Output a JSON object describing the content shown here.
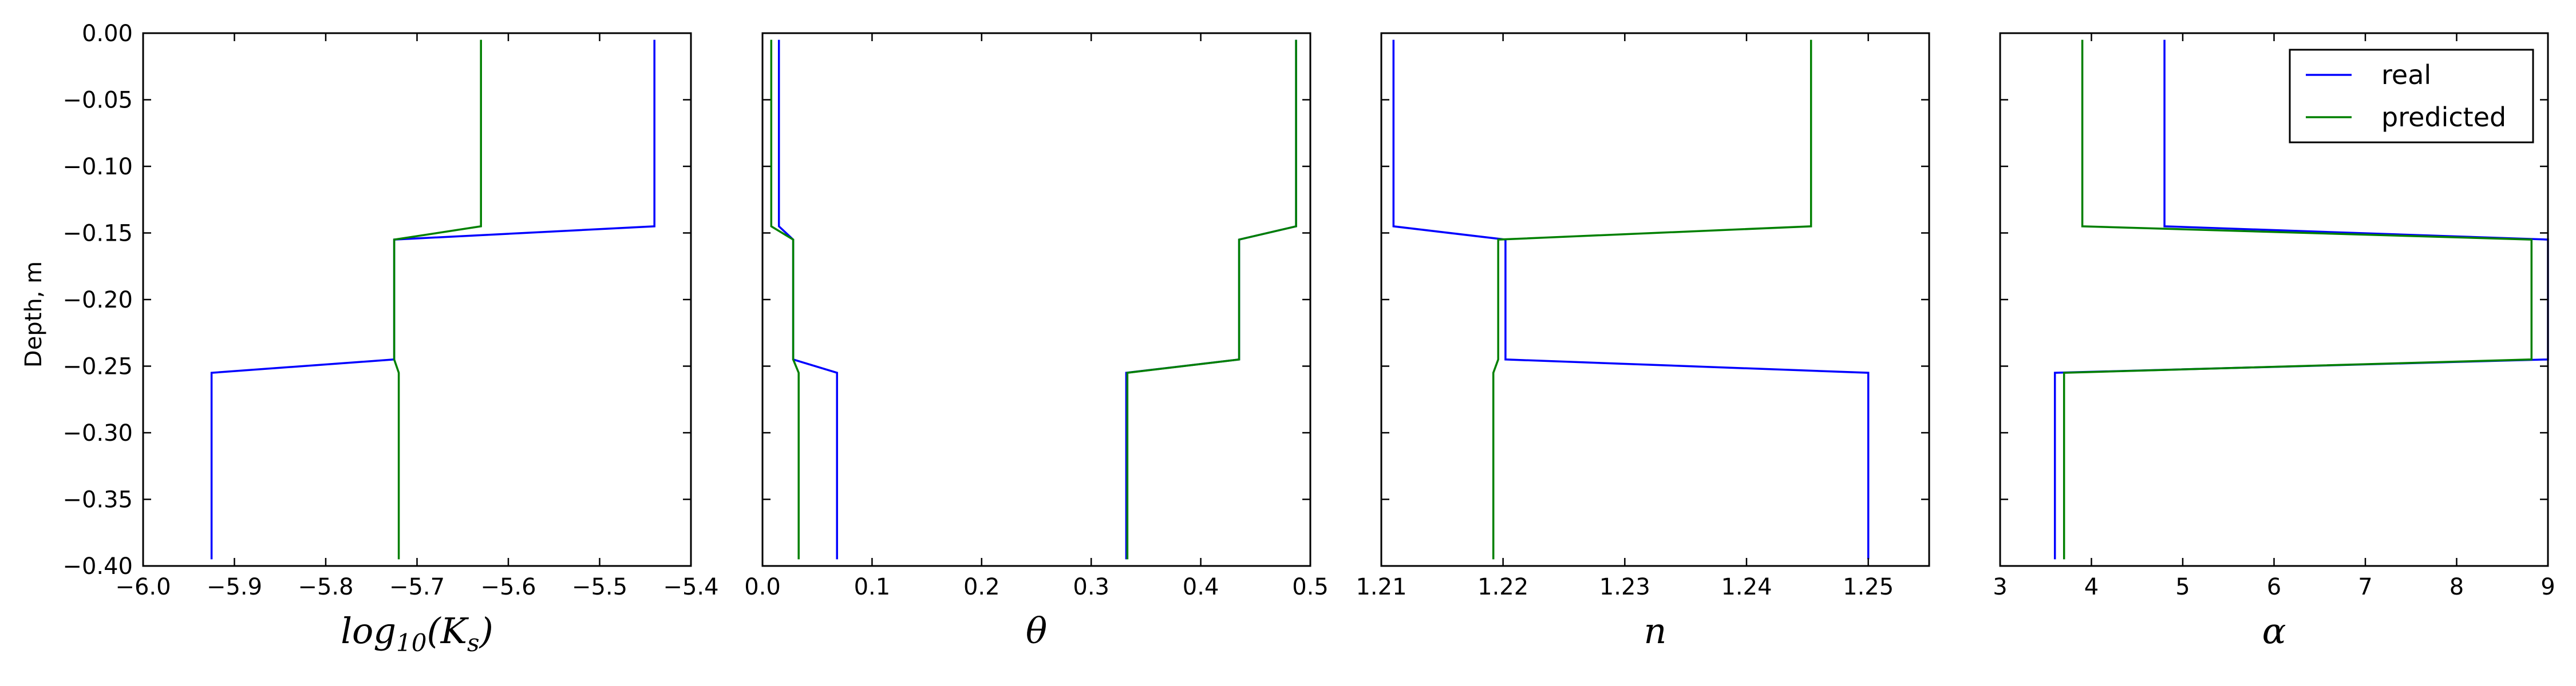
{
  "colors": {
    "real": "#0000ff",
    "predicted": "#008000",
    "frame": "#000000"
  },
  "ylabel": "Depth, m",
  "legend": {
    "placement": "top-right",
    "entries": [
      "real",
      "predicted"
    ]
  },
  "y_ticks": [
    "0.00",
    "−0.05",
    "−0.10",
    "−0.15",
    "−0.20",
    "−0.25",
    "−0.30",
    "−0.35",
    "−0.40"
  ],
  "chart_data": [
    {
      "type": "line",
      "xlabel": "log10(Ks)",
      "xlim": [
        -6.0,
        -5.4
      ],
      "ylim": [
        -0.4,
        0.0
      ],
      "x_ticks": [
        -6.0,
        -5.9,
        -5.8,
        -5.7,
        -5.6,
        -5.5,
        -5.4
      ],
      "x_tick_labels": [
        "−6.0",
        "−5.9",
        "−5.8",
        "−5.7",
        "−5.6",
        "−5.5",
        "−5.4"
      ],
      "series": [
        {
          "name": "real",
          "x": [
            -5.44,
            -5.44,
            -5.725,
            -5.725,
            -5.925,
            -5.925
          ],
          "y": [
            -0.005,
            -0.145,
            -0.155,
            -0.245,
            -0.255,
            -0.395
          ]
        },
        {
          "name": "predicted",
          "x": [
            -5.63,
            -5.63,
            -5.725,
            -5.725,
            -5.72,
            -5.72
          ],
          "y": [
            -0.005,
            -0.145,
            -0.155,
            -0.245,
            -0.255,
            -0.395
          ]
        }
      ]
    },
    {
      "type": "line",
      "xlabel": "θ",
      "xlim": [
        0.0,
        0.5
      ],
      "ylim": [
        -0.4,
        0.0
      ],
      "x_ticks": [
        0.0,
        0.1,
        0.2,
        0.3,
        0.4,
        0.5
      ],
      "x_tick_labels": [
        "0.0",
        "0.1",
        "0.2",
        "0.3",
        "0.4",
        "0.5"
      ],
      "series": [
        {
          "name": "real",
          "x": [
            0.015,
            0.015,
            0.028,
            0.028,
            0.068,
            0.068
          ],
          "y": [
            -0.005,
            -0.145,
            -0.155,
            -0.245,
            -0.255,
            -0.395
          ]
        },
        {
          "name": "predicted",
          "x": [
            0.008,
            0.008,
            0.028,
            0.028,
            0.033,
            0.033
          ],
          "y": [
            -0.005,
            -0.145,
            -0.155,
            -0.245,
            -0.255,
            -0.395
          ]
        },
        {
          "name": "real",
          "x": [
            0.487,
            0.487,
            0.435,
            0.435,
            0.332,
            0.332
          ],
          "y": [
            -0.005,
            -0.145,
            -0.155,
            -0.245,
            -0.255,
            -0.395
          ]
        },
        {
          "name": "predicted",
          "x": [
            0.487,
            0.487,
            0.435,
            0.435,
            0.333,
            0.333
          ],
          "y": [
            -0.005,
            -0.145,
            -0.155,
            -0.245,
            -0.255,
            -0.395
          ]
        }
      ]
    },
    {
      "type": "line",
      "xlabel": "n",
      "xlim": [
        1.21,
        1.255
      ],
      "ylim": [
        -0.4,
        0.0
      ],
      "x_ticks": [
        1.21,
        1.22,
        1.23,
        1.24,
        1.25
      ],
      "x_tick_labels": [
        "1.21",
        "1.22",
        "1.23",
        "1.24",
        "1.25"
      ],
      "series": [
        {
          "name": "real",
          "x": [
            1.211,
            1.211,
            1.2202,
            1.2202,
            1.25,
            1.25
          ],
          "y": [
            -0.005,
            -0.145,
            -0.155,
            -0.245,
            -0.255,
            -0.395
          ]
        },
        {
          "name": "predicted",
          "x": [
            1.2453,
            1.2453,
            1.2196,
            1.2196,
            1.2192,
            1.2192
          ],
          "y": [
            -0.005,
            -0.145,
            -0.155,
            -0.245,
            -0.255,
            -0.395
          ]
        }
      ]
    },
    {
      "type": "line",
      "xlabel": "α",
      "xlim": [
        3,
        9
      ],
      "ylim": [
        -0.4,
        0.0
      ],
      "x_ticks": [
        3,
        4,
        5,
        6,
        7,
        8,
        9
      ],
      "x_tick_labels": [
        "3",
        "4",
        "5",
        "6",
        "7",
        "8",
        "9"
      ],
      "series": [
        {
          "name": "real",
          "x": [
            4.8,
            4.8,
            9.0,
            9.0,
            3.6,
            3.6
          ],
          "y": [
            -0.005,
            -0.145,
            -0.155,
            -0.245,
            -0.255,
            -0.395
          ]
        },
        {
          "name": "predicted",
          "x": [
            3.9,
            3.9,
            8.82,
            8.82,
            3.7,
            3.7
          ],
          "y": [
            -0.005,
            -0.145,
            -0.155,
            -0.245,
            -0.255,
            -0.395
          ]
        }
      ]
    }
  ]
}
